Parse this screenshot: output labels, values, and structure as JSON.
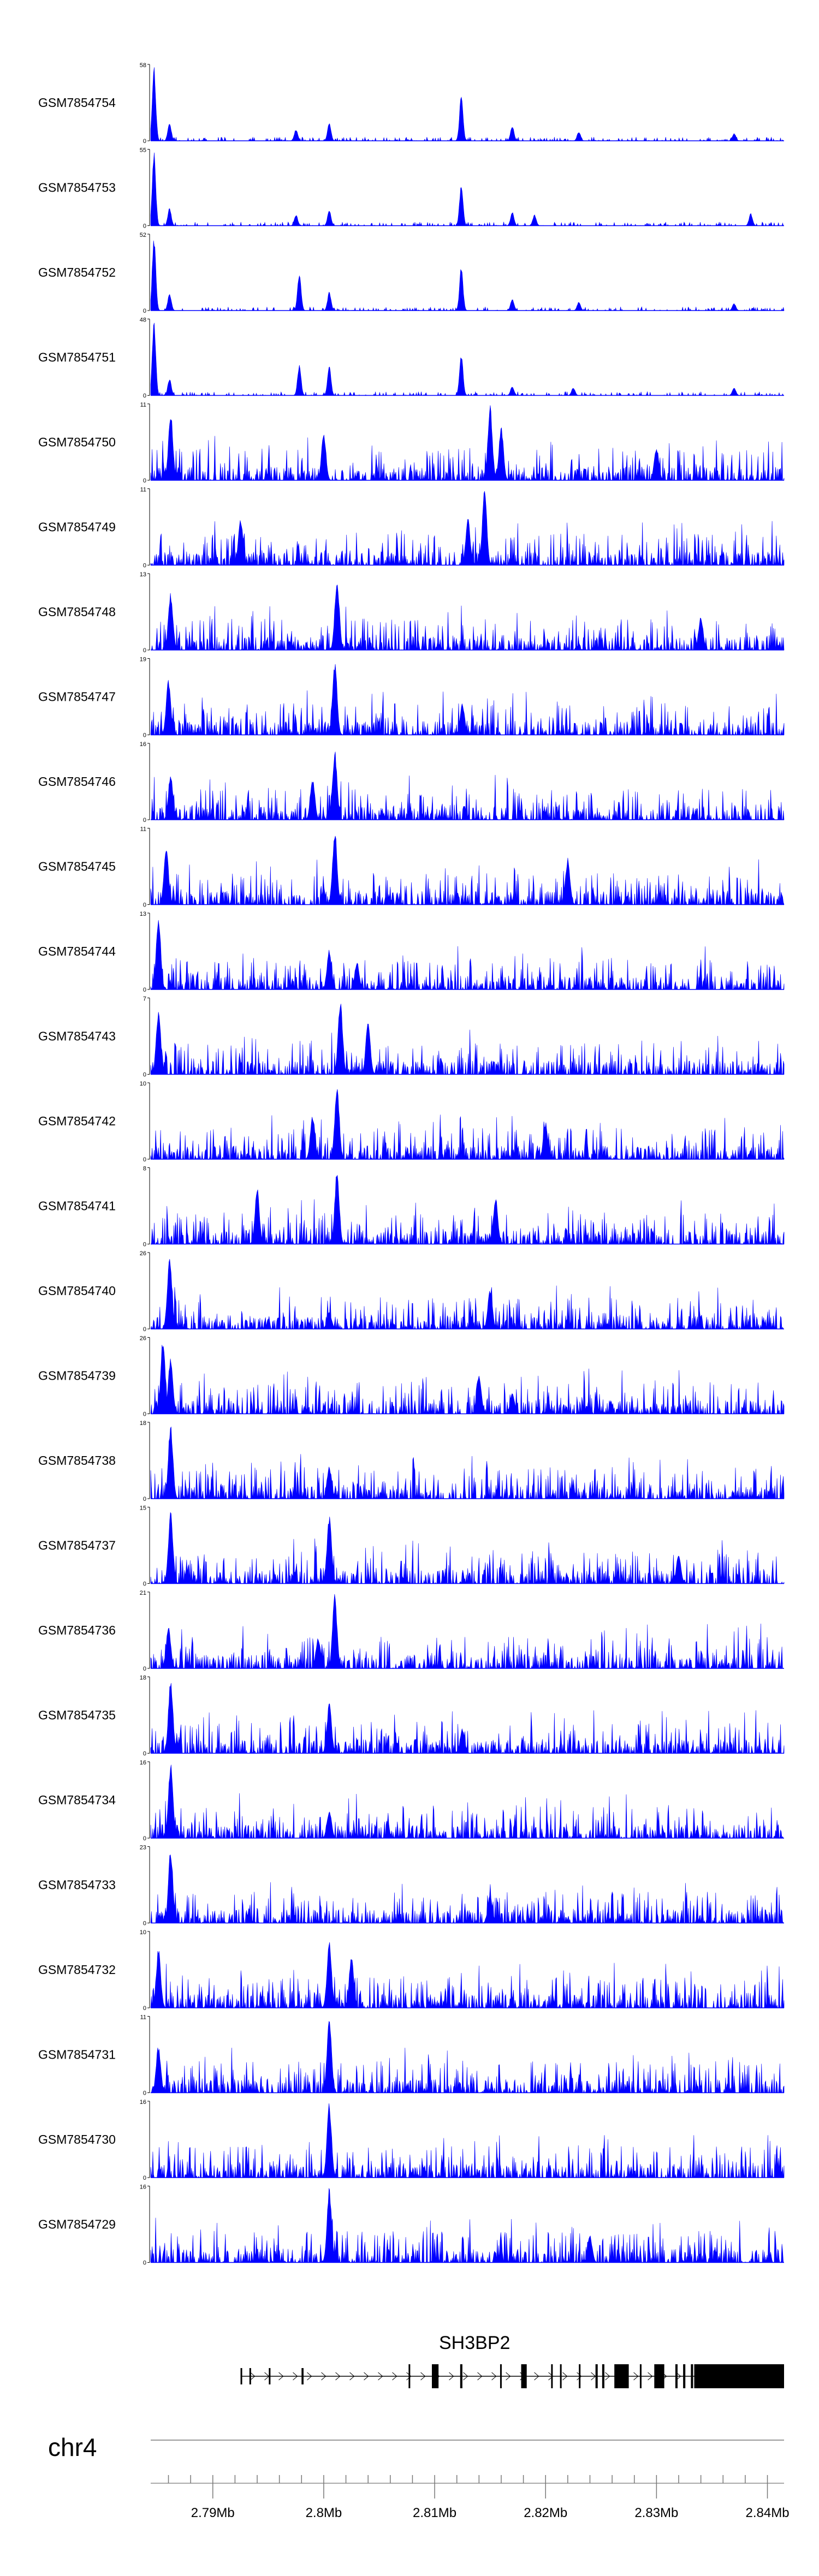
{
  "chart_data": {
    "type": "area",
    "title": "",
    "chromosome": "chr4",
    "region_start_mb": 2.7844,
    "region_end_mb": 2.8415,
    "signal_color": "#0000ff",
    "tracks": [
      {
        "name": "GSM7854754",
        "ymax": 58,
        "style": "sparse",
        "peaks": [
          [
            2.7847,
            58
          ],
          [
            2.7861,
            14
          ],
          [
            2.7975,
            9
          ],
          [
            2.8005,
            14
          ],
          [
            2.8124,
            36
          ],
          [
            2.817,
            12
          ],
          [
            2.823,
            7
          ],
          [
            2.837,
            6
          ]
        ]
      },
      {
        "name": "GSM7854753",
        "ymax": 55,
        "style": "sparse",
        "peaks": [
          [
            2.7847,
            55
          ],
          [
            2.7861,
            13
          ],
          [
            2.7975,
            8
          ],
          [
            2.8005,
            12
          ],
          [
            2.8124,
            30
          ],
          [
            2.817,
            10
          ],
          [
            2.819,
            8
          ],
          [
            2.8385,
            9
          ]
        ]
      },
      {
        "name": "GSM7854752",
        "ymax": 52,
        "style": "sparse",
        "peaks": [
          [
            2.7847,
            52
          ],
          [
            2.7861,
            12
          ],
          [
            2.7978,
            26
          ],
          [
            2.8005,
            13
          ],
          [
            2.8124,
            30
          ],
          [
            2.817,
            8
          ],
          [
            2.823,
            6
          ],
          [
            2.837,
            5
          ]
        ]
      },
      {
        "name": "GSM7854751",
        "ymax": 48,
        "style": "sparse",
        "peaks": [
          [
            2.7847,
            48
          ],
          [
            2.7861,
            11
          ],
          [
            2.7978,
            20
          ],
          [
            2.8005,
            19
          ],
          [
            2.8124,
            27
          ],
          [
            2.817,
            6
          ],
          [
            2.8225,
            5
          ],
          [
            2.837,
            5
          ]
        ]
      },
      {
        "name": "GSM7854750",
        "ymax": 11,
        "style": "noisy",
        "peaks": [
          [
            2.7862,
            10
          ],
          [
            2.8,
            7
          ],
          [
            2.815,
            11
          ],
          [
            2.816,
            8
          ],
          [
            2.83,
            5
          ]
        ]
      },
      {
        "name": "GSM7854749",
        "ymax": 11,
        "style": "noisy",
        "peaks": [
          [
            2.8145,
            11
          ],
          [
            2.813,
            7
          ],
          [
            2.7925,
            7
          ]
        ]
      },
      {
        "name": "GSM7854748",
        "ymax": 13,
        "style": "noisy",
        "peaks": [
          [
            2.7862,
            10
          ],
          [
            2.8012,
            13
          ],
          [
            2.834,
            6
          ]
        ]
      },
      {
        "name": "GSM7854747",
        "ymax": 19,
        "style": "noisy",
        "peaks": [
          [
            2.786,
            14
          ],
          [
            2.801,
            19
          ],
          [
            2.8125,
            8
          ]
        ]
      },
      {
        "name": "GSM7854746",
        "ymax": 16,
        "style": "noisy",
        "peaks": [
          [
            2.7862,
            10
          ],
          [
            2.799,
            9
          ],
          [
            2.801,
            15
          ]
        ]
      },
      {
        "name": "GSM7854745",
        "ymax": 11,
        "style": "noisy",
        "peaks": [
          [
            2.7858,
            9
          ],
          [
            2.801,
            11
          ],
          [
            2.822,
            7
          ]
        ]
      },
      {
        "name": "GSM7854744",
        "ymax": 13,
        "style": "noisy",
        "peaks": [
          [
            2.7851,
            13
          ],
          [
            2.8005,
            7
          ],
          [
            2.803,
            5
          ]
        ]
      },
      {
        "name": "GSM7854743",
        "ymax": 7,
        "style": "noisy",
        "peaks": [
          [
            2.7851,
            6
          ],
          [
            2.8015,
            7
          ],
          [
            2.804,
            5
          ]
        ]
      },
      {
        "name": "GSM7854742",
        "ymax": 10,
        "style": "noisy",
        "peaks": [
          [
            2.8012,
            10
          ],
          [
            2.799,
            6
          ],
          [
            2.82,
            5
          ]
        ]
      },
      {
        "name": "GSM7854741",
        "ymax": 8,
        "style": "noisy",
        "peaks": [
          [
            2.8012,
            8
          ],
          [
            2.794,
            6
          ],
          [
            2.8155,
            5
          ]
        ]
      },
      {
        "name": "GSM7854740",
        "ymax": 26,
        "style": "noisy",
        "peaks": [
          [
            2.7861,
            26
          ],
          [
            2.815,
            14
          ],
          [
            2.8005,
            6
          ]
        ]
      },
      {
        "name": "GSM7854739",
        "ymax": 26,
        "style": "noisy",
        "peaks": [
          [
            2.7855,
            26
          ],
          [
            2.7862,
            20
          ],
          [
            2.814,
            14
          ],
          [
            2.817,
            7
          ]
        ]
      },
      {
        "name": "GSM7854738",
        "ymax": 18,
        "style": "noisy",
        "peaks": [
          [
            2.7862,
            18
          ],
          [
            2.8005,
            8
          ]
        ]
      },
      {
        "name": "GSM7854737",
        "ymax": 15,
        "style": "noisy",
        "peaks": [
          [
            2.7862,
            15
          ],
          [
            2.8005,
            14
          ],
          [
            2.832,
            6
          ]
        ]
      },
      {
        "name": "GSM7854736",
        "ymax": 21,
        "style": "noisy",
        "peaks": [
          [
            2.786,
            12
          ],
          [
            2.7995,
            9
          ],
          [
            2.801,
            21
          ]
        ]
      },
      {
        "name": "GSM7854735",
        "ymax": 18,
        "style": "noisy",
        "peaks": [
          [
            2.7862,
            18
          ],
          [
            2.8005,
            12
          ],
          [
            2.8125,
            6
          ]
        ]
      },
      {
        "name": "GSM7854734",
        "ymax": 16,
        "style": "noisy",
        "peaks": [
          [
            2.7862,
            16
          ],
          [
            2.8005,
            6
          ]
        ]
      },
      {
        "name": "GSM7854733",
        "ymax": 23,
        "style": "noisy",
        "peaks": [
          [
            2.7862,
            23
          ],
          [
            2.815,
            9
          ]
        ]
      },
      {
        "name": "GSM7854732",
        "ymax": 10,
        "style": "noisy",
        "peaks": [
          [
            2.7851,
            8
          ],
          [
            2.8005,
            9
          ],
          [
            2.8025,
            7
          ]
        ]
      },
      {
        "name": "GSM7854731",
        "ymax": 11,
        "style": "noisy",
        "peaks": [
          [
            2.8005,
            11
          ],
          [
            2.7851,
            7
          ]
        ]
      },
      {
        "name": "GSM7854730",
        "ymax": 16,
        "style": "noisy",
        "peaks": [
          [
            2.8005,
            16
          ]
        ]
      },
      {
        "name": "GSM7854729",
        "ymax": 16,
        "style": "noisy",
        "peaks": [
          [
            2.8005,
            16
          ],
          [
            2.824,
            6
          ]
        ]
      }
    ],
    "gene": {
      "name": "SH3BP2",
      "start_mb": 2.7925,
      "end_mb": 2.8415,
      "strand": "+",
      "exons": [
        [
          2.7925,
          2.79257
        ],
        [
          2.7933,
          2.79337
        ],
        [
          2.79505,
          2.7951
        ],
        [
          2.798,
          2.79818
        ],
        [
          2.80765,
          2.8077
        ],
        [
          2.80975,
          2.81035
        ],
        [
          2.8123,
          2.8125
        ],
        [
          2.8159,
          2.816
        ],
        [
          2.8178,
          2.8183
        ],
        [
          2.8205,
          2.8206
        ],
        [
          2.8213,
          2.8214
        ],
        [
          2.823,
          2.8231
        ],
        [
          2.8245,
          2.8247
        ],
        [
          2.8251,
          2.8253
        ],
        [
          2.8262,
          2.8275
        ],
        [
          2.8285,
          2.82865
        ],
        [
          2.8298,
          2.8307
        ],
        [
          2.8317,
          2.8319
        ],
        [
          2.8324,
          2.8326
        ],
        [
          2.8331,
          2.8333
        ],
        [
          2.8334,
          2.8415
        ]
      ]
    },
    "axis": {
      "tick_labels": [
        "2.79Mb",
        "2.8Mb",
        "2.81Mb",
        "2.82Mb",
        "2.83Mb",
        "2.84Mb"
      ],
      "tick_values": [
        2.79,
        2.8,
        2.81,
        2.82,
        2.83,
        2.84
      ],
      "minor_tick_step_mb": 0.002
    }
  }
}
